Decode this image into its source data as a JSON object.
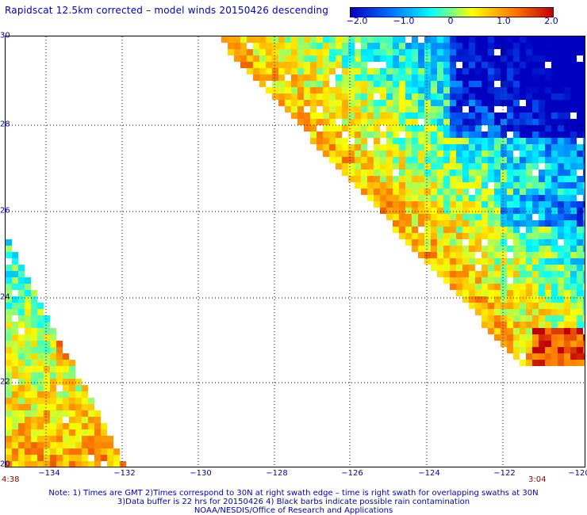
{
  "title": "Rapidscat 12.5km corrected – model winds 20150426 descending",
  "colorbar": {
    "tick_labels": [
      "−2.0",
      "−1.0",
      "0",
      "1.0",
      "2.0"
    ],
    "colors": [
      "#0000c0",
      "#0070ff",
      "#00ffff",
      "#ffff00",
      "#ff8000",
      "#c00000"
    ]
  },
  "map": {
    "lat_labels": [
      "30",
      "28",
      "26",
      "24",
      "22",
      "20"
    ],
    "lon_labels": [
      "−134",
      "−132",
      "−130",
      "−128",
      "−126",
      "−124",
      "−122",
      "−120"
    ],
    "lat_range": [
      20,
      30
    ],
    "lon_range": [
      -135,
      -120
    ],
    "time_left": "4:38",
    "time_right": "3:04"
  },
  "notes": {
    "line1": "Note: 1) Times are GMT 2)Times correspond to 30N at right swath edge – time is right swath for overlapping swaths at 30N",
    "line2": "3)Data buffer is 22 hrs for 20150426 4) Black barbs indicate possible rain contamination",
    "line3": "NOAA/NESDIS/Office of Research and Applications"
  }
}
